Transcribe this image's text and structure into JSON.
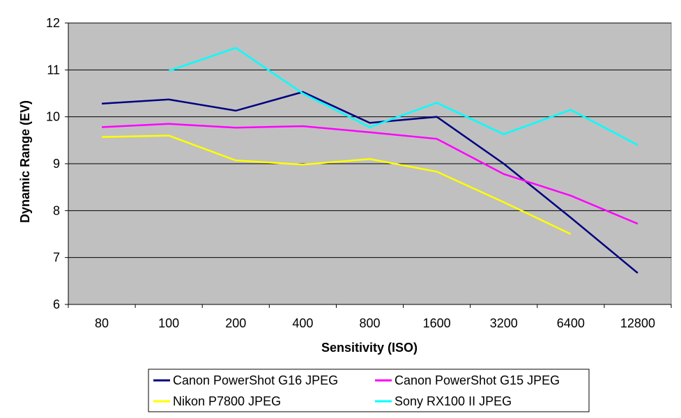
{
  "chart_data": {
    "type": "line",
    "title": "",
    "xlabel": "Sensitivity (ISO)",
    "ylabel": "Dynamic Range (EV)",
    "categories": [
      "80",
      "100",
      "200",
      "400",
      "800",
      "1600",
      "3200",
      "6400",
      "12800"
    ],
    "ylim": [
      6,
      12
    ],
    "yticks": [
      "6",
      "7",
      "8",
      "9",
      "10",
      "11",
      "12"
    ],
    "grid": true,
    "legend_position": "bottom",
    "series": [
      {
        "name": "Canon PowerShot G16 JPEG",
        "color": "#000080",
        "values": [
          10.28,
          10.37,
          10.13,
          10.53,
          9.87,
          10.0,
          9.0,
          7.85,
          6.67
        ]
      },
      {
        "name": "Canon PowerShot G15 JPEG",
        "color": "#ff00ff",
        "values": [
          9.78,
          9.85,
          9.77,
          9.8,
          9.67,
          9.53,
          8.78,
          8.32,
          7.72
        ]
      },
      {
        "name": "Nikon P7800 JPEG",
        "color": "#ffff00",
        "values": [
          9.57,
          9.6,
          9.07,
          8.98,
          9.1,
          8.83,
          8.18,
          7.5,
          null
        ]
      },
      {
        "name": "Sony RX100 II JPEG",
        "color": "#00ffff",
        "values": [
          null,
          10.98,
          11.47,
          10.5,
          9.78,
          10.3,
          9.63,
          10.15,
          9.4
        ]
      }
    ]
  }
}
